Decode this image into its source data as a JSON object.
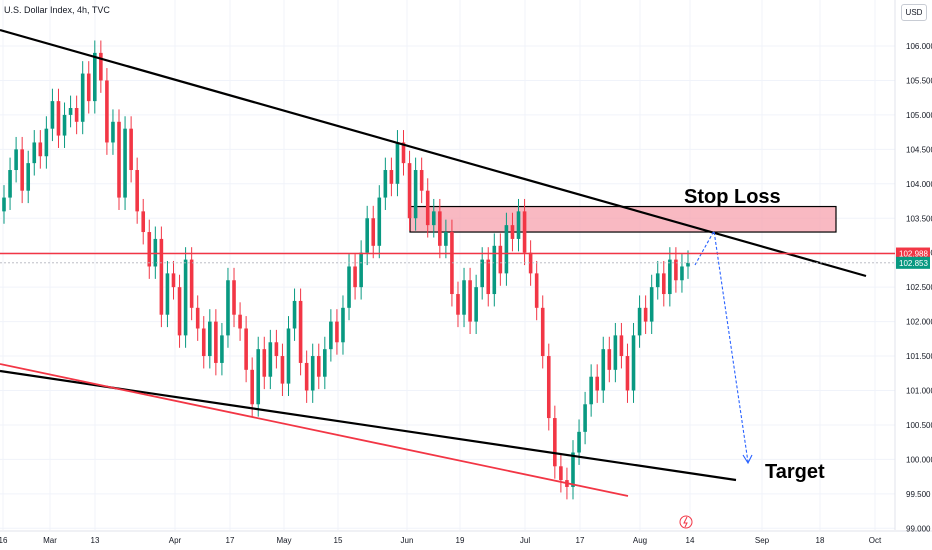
{
  "chart_data": {
    "type": "line",
    "title": "U.S. Dollar Index, 4h, TVC",
    "currency": "USD",
    "x_ticks": [
      "16",
      "Mar",
      "13",
      "Apr",
      "17",
      "May",
      "15",
      "Jun",
      "19",
      "Jul",
      "17",
      "Aug",
      "14",
      "Sep",
      "18",
      "Oct"
    ],
    "y_ticks": [
      "106.000",
      "105.500",
      "105.000",
      "104.500",
      "104.000",
      "103.500",
      "103.000",
      "102.500",
      "102.000",
      "101.500",
      "101.000",
      "100.500",
      "100.000",
      "99.500",
      "99.000"
    ],
    "ylim": [
      99.0,
      106.4
    ],
    "price_labels": [
      {
        "value": 102.988,
        "label": "102.988",
        "color": "#f23645"
      },
      {
        "value": 102.853,
        "label": "102.853",
        "color": "#089981"
      }
    ],
    "series": [
      {
        "values": [
          103.8,
          104.2,
          104.5,
          103.9,
          104.3,
          104.6,
          104.4,
          104.8,
          105.2,
          104.7,
          105.0,
          105.1,
          104.9,
          105.6,
          105.2,
          105.9,
          105.5,
          104.6,
          104.9,
          103.8,
          104.8,
          104.2,
          103.6,
          103.3,
          102.8,
          103.2,
          102.1,
          102.7,
          102.5,
          101.8,
          102.9,
          102.2,
          101.9,
          101.5,
          102.0,
          101.4,
          101.8,
          102.6,
          102.1,
          101.9,
          101.3,
          100.8,
          101.6,
          101.2,
          101.7,
          101.5,
          101.1,
          101.9,
          102.3,
          101.4,
          101.0,
          101.5,
          101.2,
          101.6,
          102.0,
          101.7,
          102.2,
          102.8,
          102.5,
          103.0,
          103.5,
          103.1,
          103.8,
          104.2,
          104.0,
          104.6,
          104.3,
          103.5,
          104.2,
          103.9,
          103.4,
          103.6,
          103.1,
          103.3,
          102.4,
          102.1,
          102.6,
          102.0,
          102.5,
          102.9,
          102.4,
          103.1,
          102.7,
          103.4,
          103.2,
          103.6,
          103.0,
          102.7,
          102.2,
          101.5,
          100.6,
          99.9,
          99.7,
          99.6,
          100.1,
          100.4,
          100.8,
          101.2,
          101.0,
          101.6,
          101.3,
          101.8,
          101.5,
          101.0,
          101.8,
          102.2,
          102.0,
          102.5,
          102.7,
          102.4,
          102.9,
          102.6,
          102.8,
          102.853
        ]
      }
    ],
    "annotations": [
      {
        "text": "Stop Loss"
      },
      {
        "text": "Target"
      }
    ],
    "stop_loss_zone": [
      103.3,
      103.67
    ],
    "colors": {
      "up": "#089981",
      "down": "#f23645",
      "trendline": "#000000",
      "channel": "#f23645",
      "projection": "#2962ff"
    }
  }
}
